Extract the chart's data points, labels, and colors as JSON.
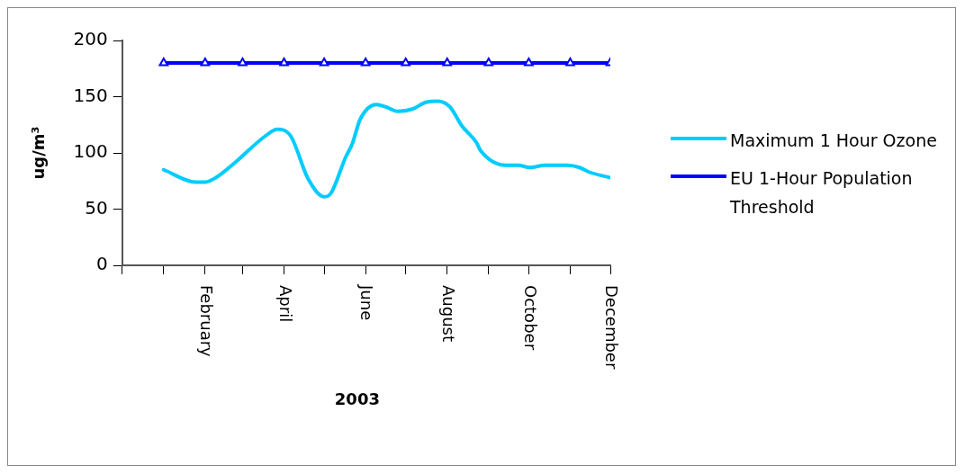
{
  "chart_data": {
    "type": "line",
    "xlabel": "2003",
    "ylabel": "ug/m³",
    "xlim": [
      "2002-12-01",
      "2003-12-01"
    ],
    "xticks": [
      {
        "value": "2002-12-01",
        "label": null
      },
      {
        "value": "2003-01-01",
        "label": null
      },
      {
        "value": "2003-02-01",
        "label": "February"
      },
      {
        "value": "2003-03-01",
        "label": null
      },
      {
        "value": "2003-04-01",
        "label": "April"
      },
      {
        "value": "2003-05-01",
        "label": null
      },
      {
        "value": "2003-06-01",
        "label": "June"
      },
      {
        "value": "2003-07-01",
        "label": null
      },
      {
        "value": "2003-08-01",
        "label": "August"
      },
      {
        "value": "2003-09-01",
        "label": null
      },
      {
        "value": "2003-10-01",
        "label": "October"
      },
      {
        "value": "2003-11-01",
        "label": null
      },
      {
        "value": "2003-12-01",
        "label": "December"
      }
    ],
    "ylim": [
      0,
      200
    ],
    "yticks": [
      0,
      50,
      100,
      150,
      200
    ],
    "grid": false,
    "legend": "right",
    "line_style": "solid",
    "series": [
      {
        "name": "Maximum 1 Hour Ozone",
        "color": "#00ccff",
        "marker": "none",
        "x": [
          "2003-01-01",
          "2003-01-25",
          "2003-02-01",
          "2003-02-09",
          "2003-02-22",
          "2003-03-18",
          "2003-03-27",
          "2003-04-06",
          "2003-04-19",
          "2003-05-01",
          "2003-05-06",
          "2003-05-17",
          "2003-05-22",
          "2003-05-28",
          "2003-06-09",
          "2003-06-16",
          "2003-06-25",
          "2003-07-06",
          "2003-07-16",
          "2003-07-25",
          "2003-08-03",
          "2003-08-12",
          "2003-08-23",
          "2003-08-26",
          "2003-09-14",
          "2003-09-23",
          "2003-10-02",
          "2003-10-13",
          "2003-10-30",
          "2003-11-08",
          "2003-11-15",
          "2003-12-01"
        ],
        "values": [
          85,
          74,
          74,
          78,
          90,
          115,
          121,
          115,
          77,
          61,
          64,
          96,
          108,
          130,
          143,
          141,
          137,
          139,
          145,
          146,
          141,
          124,
          109,
          102,
          89,
          89,
          87,
          89,
          89,
          87,
          83,
          78
        ]
      },
      {
        "name": "EU 1-Hour Population Threshold",
        "color": "#0000ff",
        "marker": "triangle",
        "x": [
          "2003-01-01",
          "2003-02-01",
          "2003-03-01",
          "2003-04-01",
          "2003-05-01",
          "2003-06-01",
          "2003-07-01",
          "2003-08-01",
          "2003-09-01",
          "2003-10-01",
          "2003-11-01",
          "2003-12-01"
        ],
        "values": [
          180,
          180,
          180,
          180,
          180,
          180,
          180,
          180,
          180,
          180,
          180,
          180
        ]
      }
    ]
  }
}
